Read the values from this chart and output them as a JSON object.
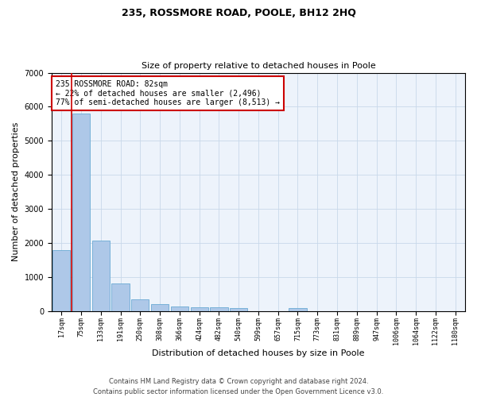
{
  "title": "235, ROSSMORE ROAD, POOLE, BH12 2HQ",
  "subtitle": "Size of property relative to detached houses in Poole",
  "xlabel": "Distribution of detached houses by size in Poole",
  "ylabel": "Number of detached properties",
  "bar_color": "#aec8e8",
  "bar_edge_color": "#6aaad4",
  "grid_color": "#c8d8ea",
  "background_color": "#edf3fb",
  "x_labels": [
    "17sqm",
    "75sqm",
    "133sqm",
    "191sqm",
    "250sqm",
    "308sqm",
    "366sqm",
    "424sqm",
    "482sqm",
    "540sqm",
    "599sqm",
    "657sqm",
    "715sqm",
    "773sqm",
    "831sqm",
    "889sqm",
    "947sqm",
    "1006sqm",
    "1064sqm",
    "1122sqm",
    "1180sqm"
  ],
  "bar_values": [
    1780,
    5800,
    2080,
    800,
    340,
    200,
    130,
    120,
    110,
    90,
    0,
    0,
    100,
    0,
    0,
    0,
    0,
    0,
    0,
    0,
    0
  ],
  "property_line_x": 0.5,
  "annotation_title": "235 ROSSMORE ROAD: 82sqm",
  "annotation_line1": "← 22% of detached houses are smaller (2,496)",
  "annotation_line2": "77% of semi-detached houses are larger (8,513) →",
  "annotation_box_color": "#ffffff",
  "annotation_box_edge": "#cc0000",
  "property_vline_color": "#cc0000",
  "footer_line1": "Contains HM Land Registry data © Crown copyright and database right 2024.",
  "footer_line2": "Contains public sector information licensed under the Open Government Licence v3.0.",
  "ylim": [
    0,
    7000
  ],
  "title_fontsize": 9,
  "subtitle_fontsize": 8,
  "axis_label_fontsize": 8,
  "tick_fontsize": 6,
  "annotation_fontsize": 7,
  "footer_fontsize": 6
}
